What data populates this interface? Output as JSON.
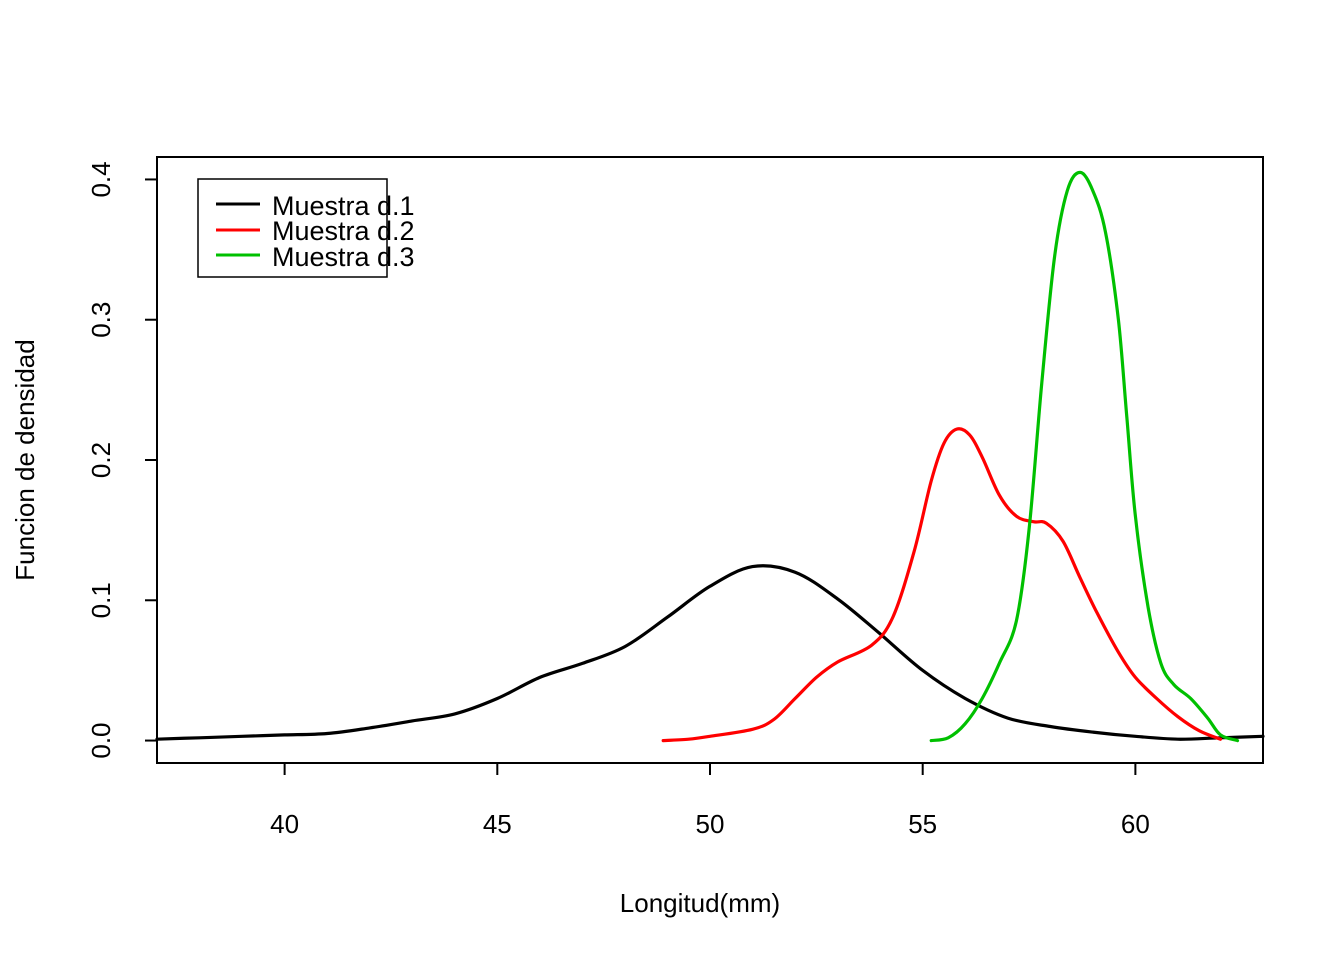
{
  "chart_data": {
    "type": "line",
    "title": "",
    "xlabel": "Longitud(mm)",
    "ylabel": "Funcion de densidad",
    "xlim": [
      37,
      63
    ],
    "ylim": [
      -0.016,
      0.416
    ],
    "x_ticks": [
      40,
      45,
      50,
      55,
      60
    ],
    "y_ticks": [
      0.0,
      0.1,
      0.2,
      0.3,
      0.4
    ],
    "x_tick_labels": [
      "40",
      "45",
      "50",
      "55",
      "60"
    ],
    "y_tick_labels": [
      "0.0",
      "0.1",
      "0.2",
      "0.3",
      "0.4"
    ],
    "grid": false,
    "legend_position": "top-left",
    "series": [
      {
        "name": "Muestra d.1",
        "color": "#000000",
        "points": [
          [
            37.0,
            0.001
          ],
          [
            38.0,
            0.002
          ],
          [
            39.0,
            0.003
          ],
          [
            40.0,
            0.004
          ],
          [
            41.0,
            0.005
          ],
          [
            42.0,
            0.009
          ],
          [
            43.0,
            0.014
          ],
          [
            44.0,
            0.019
          ],
          [
            45.0,
            0.03
          ],
          [
            46.0,
            0.045
          ],
          [
            47.0,
            0.055
          ],
          [
            48.0,
            0.067
          ],
          [
            49.0,
            0.088
          ],
          [
            50.0,
            0.11
          ],
          [
            51.0,
            0.124
          ],
          [
            52.0,
            0.12
          ],
          [
            53.0,
            0.101
          ],
          [
            54.0,
            0.076
          ],
          [
            55.0,
            0.05
          ],
          [
            56.0,
            0.03
          ],
          [
            57.0,
            0.016
          ],
          [
            58.0,
            0.01
          ],
          [
            59.0,
            0.006
          ],
          [
            60.0,
            0.003
          ],
          [
            61.0,
            0.001
          ],
          [
            62.0,
            0.002
          ],
          [
            63.0,
            0.003
          ]
        ]
      },
      {
        "name": "Muestra d.2",
        "color": "#ff0000",
        "points": [
          [
            48.9,
            0.0
          ],
          [
            49.5,
            0.001
          ],
          [
            50.0,
            0.003
          ],
          [
            51.0,
            0.008
          ],
          [
            51.5,
            0.015
          ],
          [
            52.0,
            0.03
          ],
          [
            52.5,
            0.045
          ],
          [
            53.0,
            0.056
          ],
          [
            53.8,
            0.068
          ],
          [
            54.3,
            0.088
          ],
          [
            54.8,
            0.135
          ],
          [
            55.2,
            0.185
          ],
          [
            55.5,
            0.212
          ],
          [
            55.8,
            0.222
          ],
          [
            56.1,
            0.218
          ],
          [
            56.4,
            0.202
          ],
          [
            56.8,
            0.175
          ],
          [
            57.2,
            0.16
          ],
          [
            57.6,
            0.156
          ],
          [
            57.9,
            0.155
          ],
          [
            58.3,
            0.142
          ],
          [
            58.7,
            0.116
          ],
          [
            59.1,
            0.091
          ],
          [
            59.6,
            0.063
          ],
          [
            60.0,
            0.045
          ],
          [
            60.5,
            0.03
          ],
          [
            61.0,
            0.017
          ],
          [
            61.5,
            0.007
          ],
          [
            62.0,
            0.001
          ]
        ]
      },
      {
        "name": "Muestra d.3",
        "color": "#00c000",
        "points": [
          [
            55.2,
            0.0
          ],
          [
            55.6,
            0.002
          ],
          [
            56.0,
            0.012
          ],
          [
            56.4,
            0.03
          ],
          [
            56.8,
            0.055
          ],
          [
            57.2,
            0.085
          ],
          [
            57.5,
            0.15
          ],
          [
            57.8,
            0.255
          ],
          [
            58.1,
            0.345
          ],
          [
            58.4,
            0.392
          ],
          [
            58.7,
            0.405
          ],
          [
            59.0,
            0.392
          ],
          [
            59.3,
            0.362
          ],
          [
            59.6,
            0.3
          ],
          [
            59.8,
            0.23
          ],
          [
            60.0,
            0.16
          ],
          [
            60.3,
            0.095
          ],
          [
            60.6,
            0.055
          ],
          [
            60.9,
            0.04
          ],
          [
            61.3,
            0.03
          ],
          [
            61.7,
            0.016
          ],
          [
            62.0,
            0.004
          ],
          [
            62.4,
            0.0
          ]
        ]
      }
    ]
  }
}
